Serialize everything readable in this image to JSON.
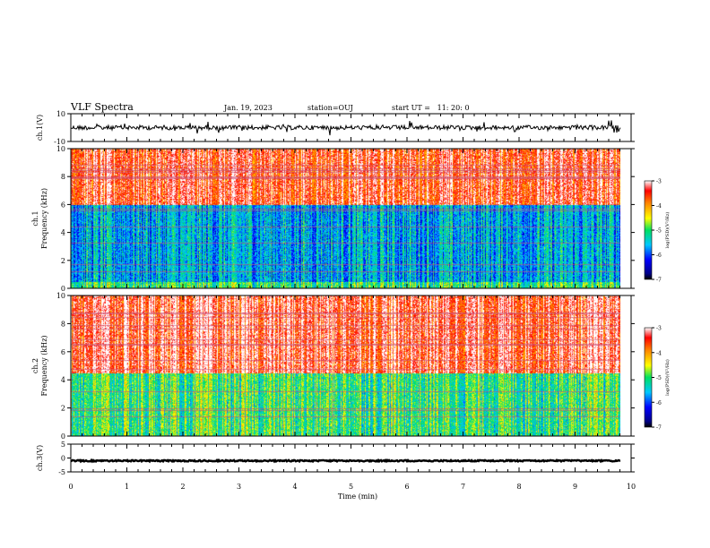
{
  "header": {
    "title": "VLF Spectra",
    "date": "Jan. 19, 2023",
    "station": "station=OUJ",
    "start_ut": "start UT =   11: 20: 0"
  },
  "chart_data": [
    {
      "type": "line",
      "ylabel": "ch.1(V)",
      "ylim": [
        -10,
        10
      ],
      "yticks": [
        "10",
        "-10"
      ],
      "series": [
        {
          "values": [
            0.0
          ]
        }
      ]
    },
    {
      "type": "heatmap",
      "ylabel": "ch.1\nFrequency (kHz)",
      "ylim": [
        0,
        10
      ],
      "yticks": [
        "10",
        "8",
        "6",
        "4",
        "2",
        "0"
      ],
      "colorbar": {
        "label": "log(PSD)(V²/Hz)",
        "ticks": [
          "-3",
          "-4",
          "-5",
          "-6",
          "-7"
        ],
        "range": [
          -7,
          -3
        ]
      },
      "background_level": {
        "low_band_kHz": [
          0.5,
          6
        ],
        "low_value": -5.6,
        "high_value": -3.4
      }
    },
    {
      "type": "heatmap",
      "ylabel": "ch.2\nFrequency (kHz)",
      "ylim": [
        0,
        10
      ],
      "yticks": [
        "10",
        "8",
        "6",
        "4",
        "2",
        "0"
      ],
      "colorbar": {
        "label": "log(PSD)(V²/Hz)",
        "ticks": [
          "-3",
          "-4",
          "-5",
          "-6",
          "-7"
        ],
        "range": [
          -7,
          -3
        ]
      },
      "background_level": {
        "low_band_kHz": [
          0,
          4.5
        ],
        "low_value": -5.0,
        "high_value": -3.3
      }
    },
    {
      "type": "line",
      "ylabel": "ch.3(V)",
      "ylim": [
        -5,
        5
      ],
      "yticks": [
        "5",
        "0",
        "-5"
      ],
      "series": [
        {
          "values": [
            -1.0
          ]
        }
      ]
    }
  ],
  "x_axis": {
    "label": "Time (min)",
    "range": [
      0,
      10
    ],
    "ticks": [
      "0",
      "1",
      "2",
      "3",
      "4",
      "5",
      "6",
      "7",
      "8",
      "9",
      "10"
    ],
    "data_end": 9.8
  }
}
